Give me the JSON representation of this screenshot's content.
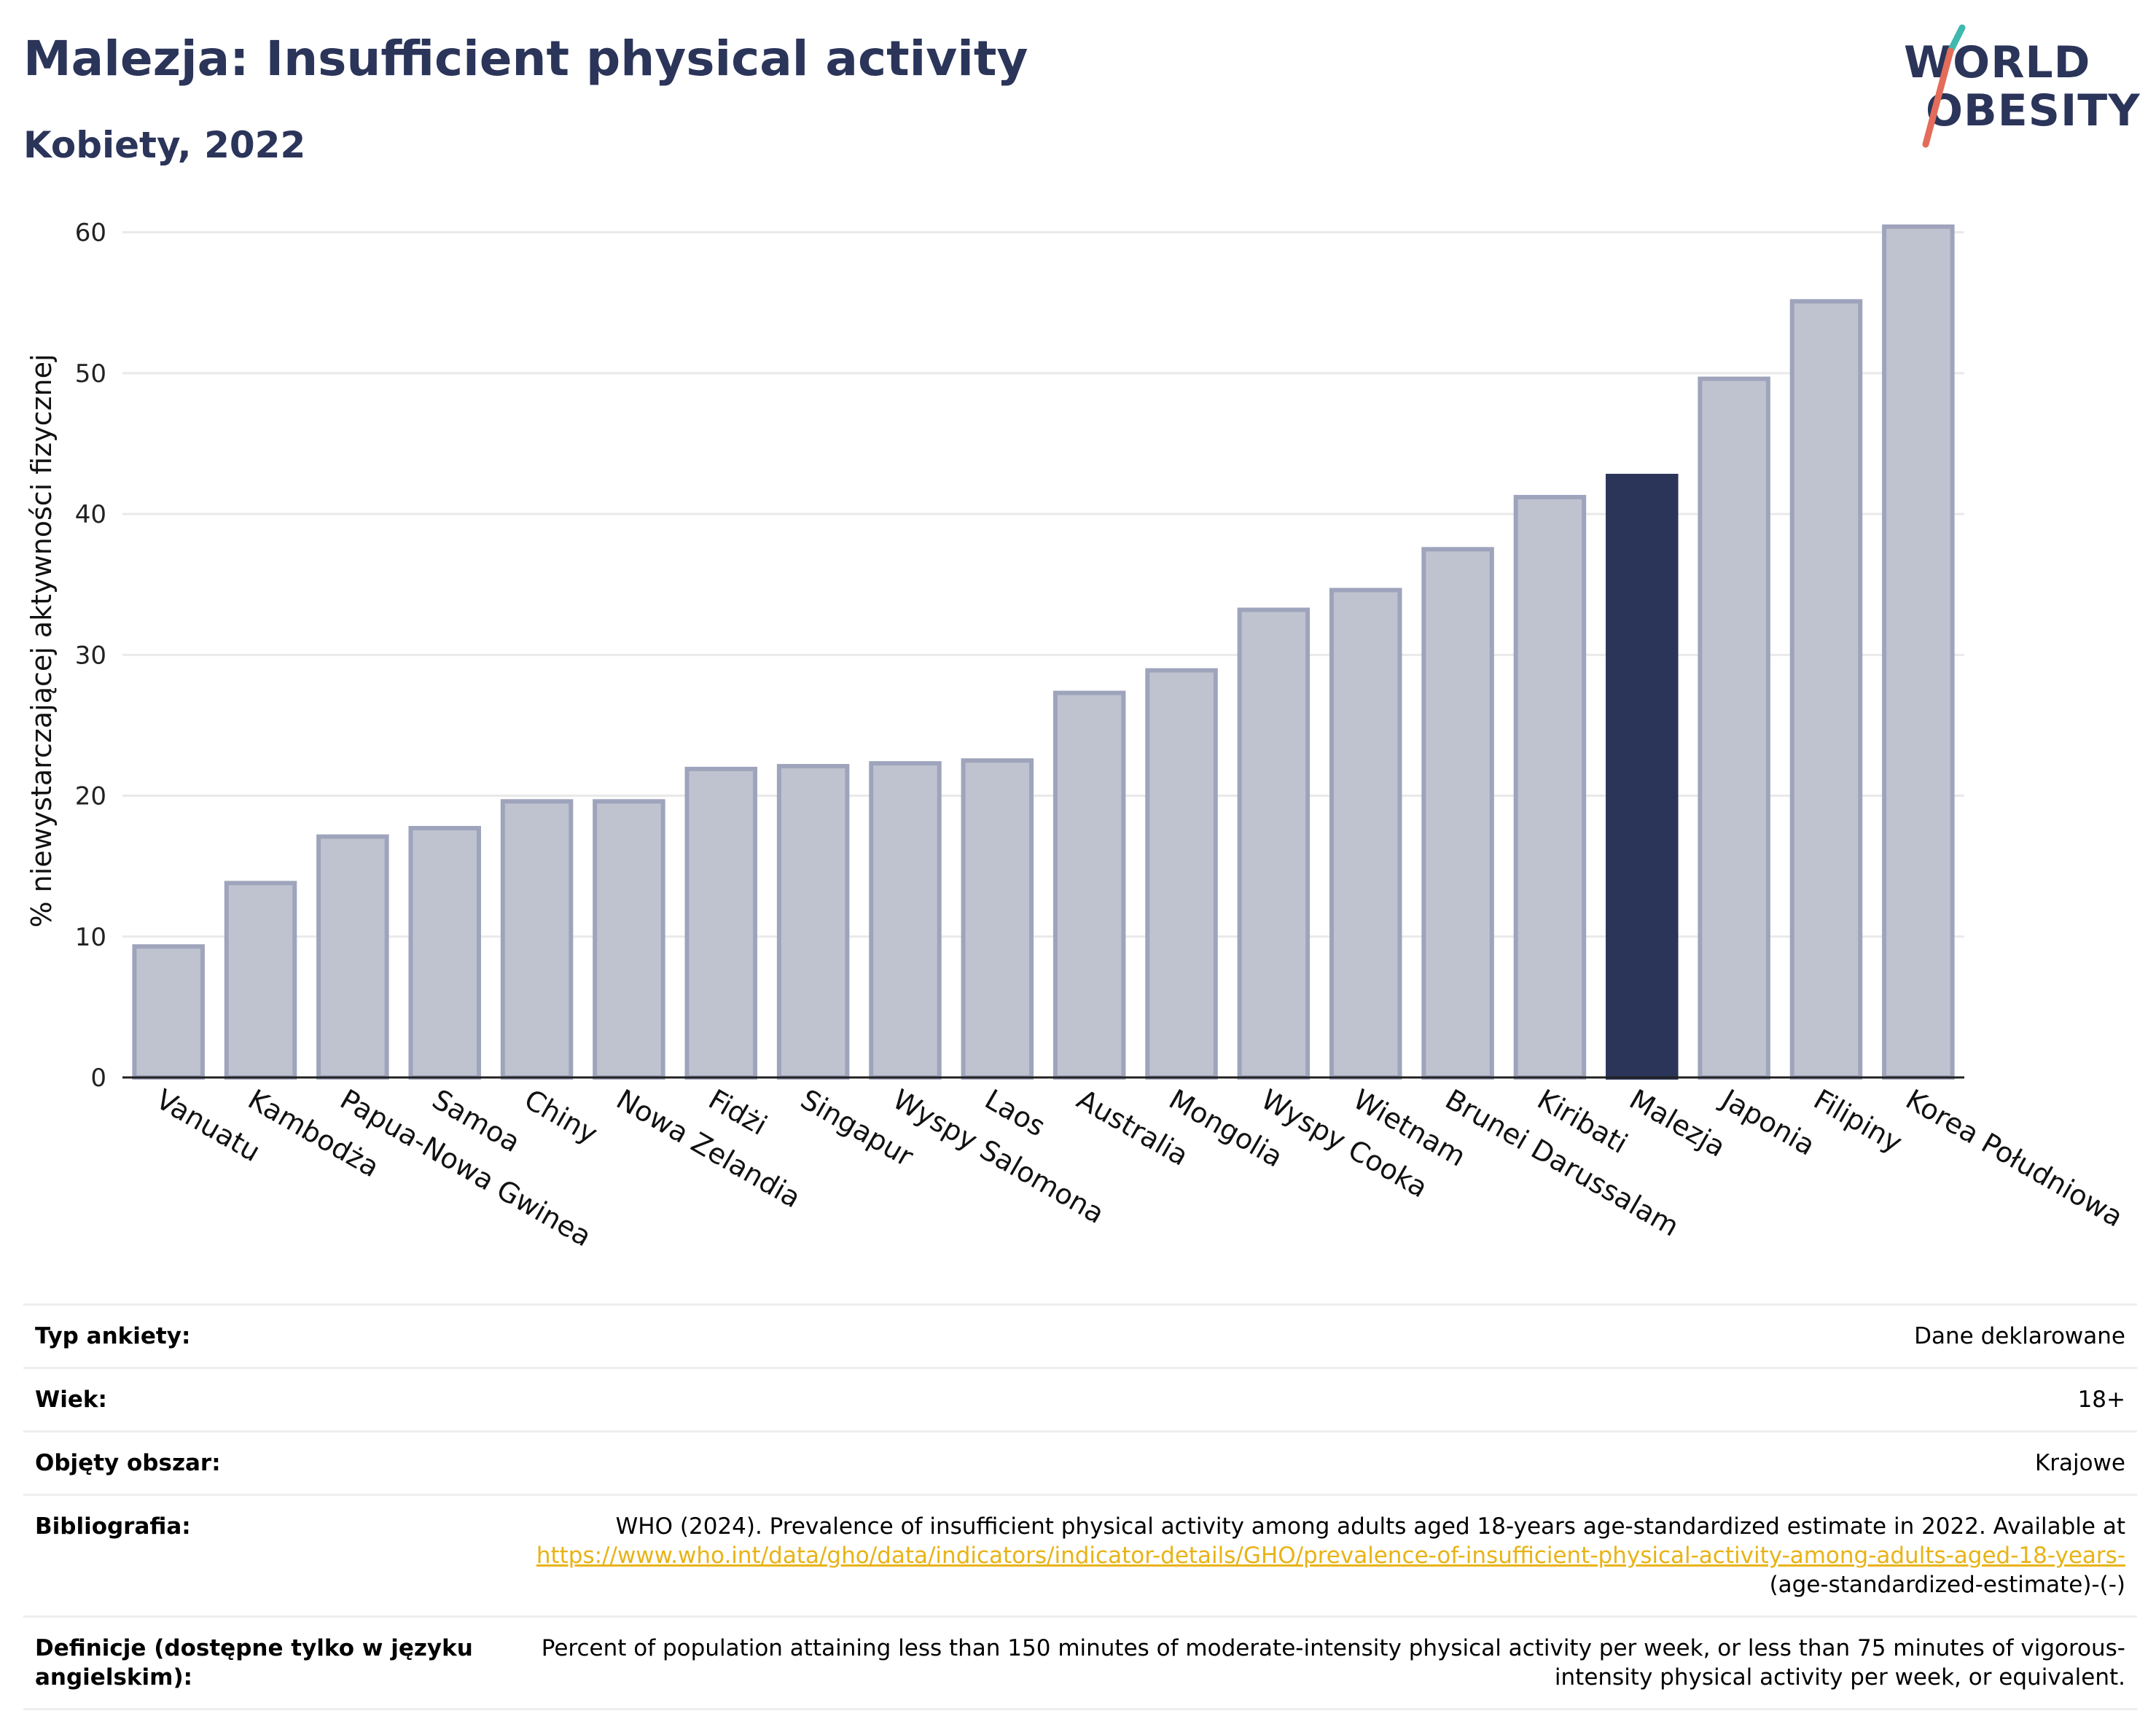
{
  "header": {
    "title": "Malezja: Insufficient physical activity",
    "subtitle": "Kobiety, 2022"
  },
  "logo": {
    "line1": "WORLD",
    "line2": "OBESITY"
  },
  "colors": {
    "bar": "#bfc3d0",
    "bar_stroke": "#9ea4bb",
    "highlight": "#2b3459",
    "title": "#2b3459",
    "grid": "#e9e9e9",
    "link": "#e8b316"
  },
  "chart_data": {
    "type": "bar",
    "title": "Malezja: Insufficient physical activity",
    "subtitle": "Kobiety, 2022",
    "xlabel": "",
    "ylabel": "% niewystarczającej aktywności fizycznej",
    "ylim": [
      0,
      62
    ],
    "yticks": [
      0,
      10,
      20,
      30,
      40,
      50,
      60
    ],
    "grid": true,
    "highlight": "Malezja",
    "categories": [
      "Vanuatu",
      "Kambodża",
      "Papua-Nowa Gwinea",
      "Samoa",
      "Chiny",
      "Nowa Zelandia",
      "Fidżi",
      "Singapur",
      "Wyspy Salomona",
      "Laos",
      "Australia",
      "Mongolia",
      "Wyspy Cooka",
      "Wietnam",
      "Brunei Darussalam",
      "Kiribati",
      "Malezja",
      "Japonia",
      "Filipiny",
      "Korea Południowa"
    ],
    "values": [
      9.3,
      13.8,
      17.1,
      17.7,
      19.6,
      19.6,
      21.9,
      22.1,
      22.3,
      22.5,
      27.3,
      28.9,
      33.2,
      34.6,
      37.5,
      41.2,
      42.7,
      49.6,
      55.1,
      60.4
    ]
  },
  "info": {
    "rows": [
      {
        "label": "Typ ankiety:",
        "value": "Dane deklarowane"
      },
      {
        "label": "Wiek:",
        "value": "18+"
      },
      {
        "label": "Objęty obszar:",
        "value": "Krajowe"
      },
      {
        "label": "Bibliografia:",
        "value": "WHO (2024). Prevalence of insufficient physical activity among adults aged 18-years age-standardized estimate in 2022. Available at",
        "link": "https://www.who.int/data/gho/data/indicators/indicator-details/GHO/prevalence-of-insufficient-physical-activity-among-adults-aged-18-years-",
        "suffix": "(age-standardized-estimate)-(-)"
      },
      {
        "label": "Definicje (dostępne tylko w języku angielskim):",
        "value": "Percent of population attaining less than 150 minutes of moderate-intensity physical activity per week, or less than 75 minutes of vigorous-intensity physical activity per week, or equivalent."
      }
    ]
  }
}
